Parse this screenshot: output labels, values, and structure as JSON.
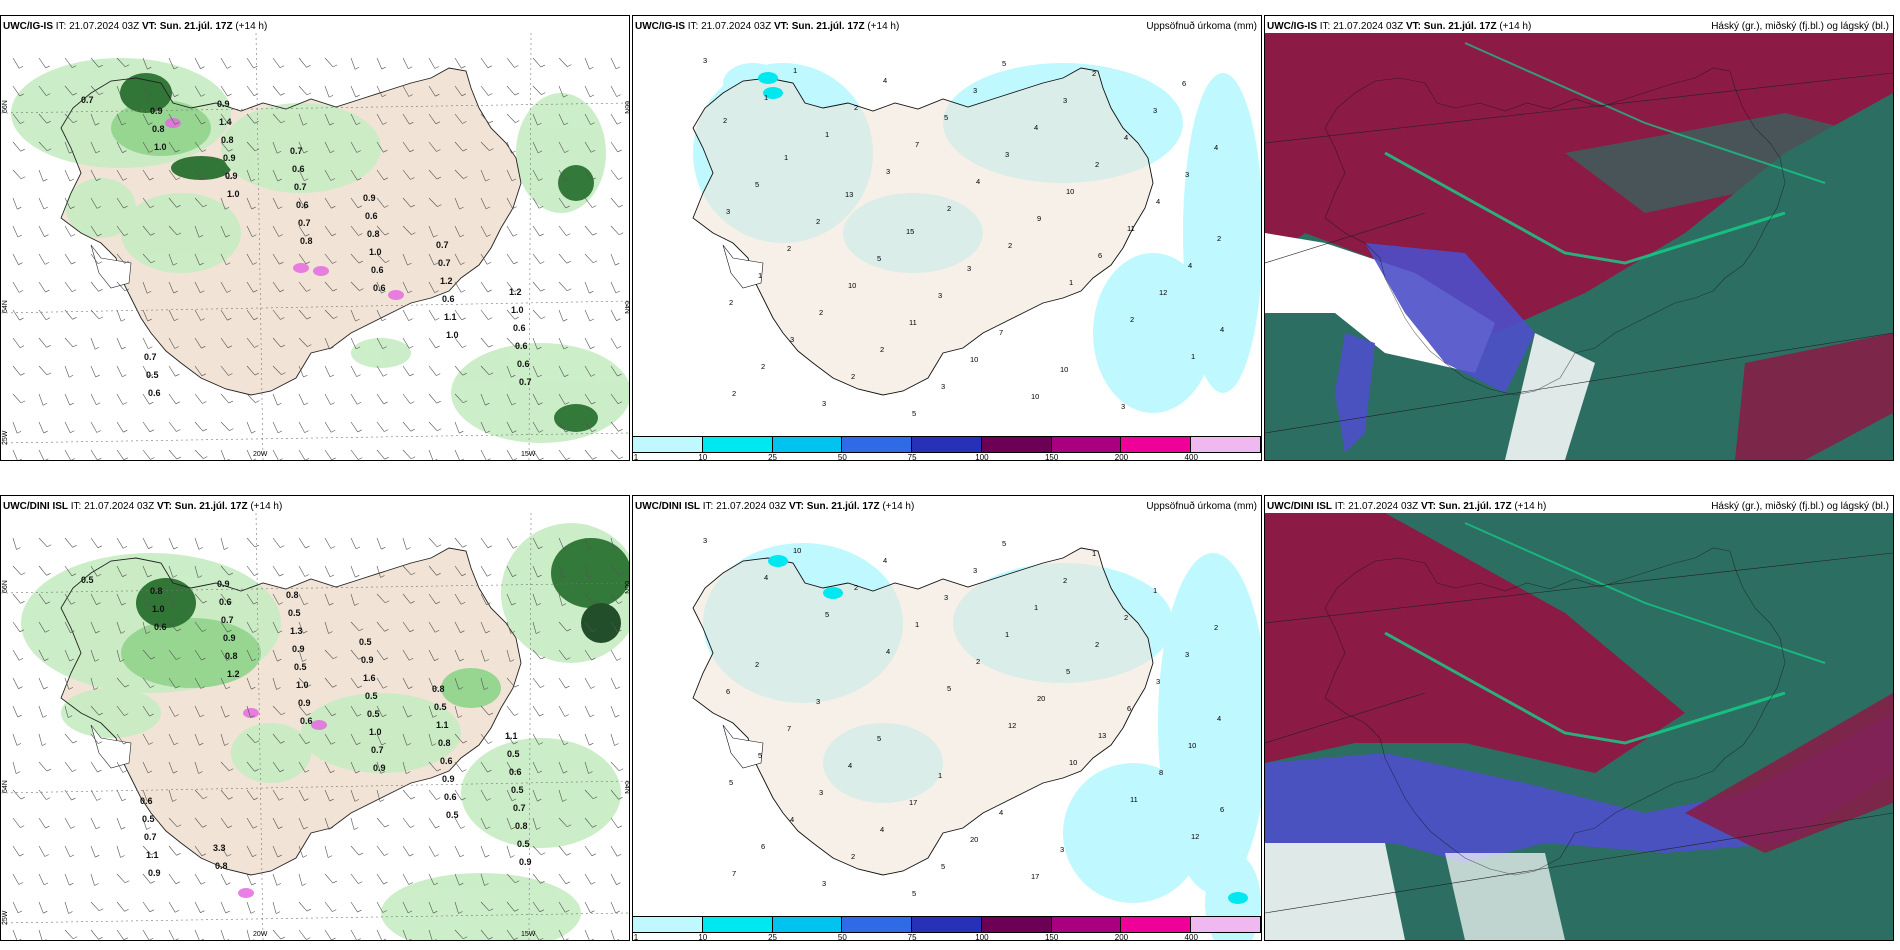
{
  "panels": [
    {
      "id": "ig-wind",
      "model": "UWC/IG-IS",
      "it_label": "IT:",
      "it_value": "21.07.2024 03Z",
      "vt_label": "VT:",
      "vt_value": "Sun. 21.júl. 17Z",
      "lead": "(+14 h)",
      "right_title": ""
    },
    {
      "id": "ig-precip",
      "model": "UWC/IG-IS",
      "it_label": "IT:",
      "it_value": "21.07.2024 03Z",
      "vt_label": "VT:",
      "vt_value": "Sun. 21.júl. 17Z",
      "lead": "(+14 h)",
      "right_title": "Uppsöfnuð úrkoma (mm)"
    },
    {
      "id": "ig-cloud",
      "model": "UWC/IG-IS",
      "it_label": "IT:",
      "it_value": "21.07.2024 03Z",
      "vt_label": "VT:",
      "vt_value": "Sun. 21.júl. 17Z",
      "lead": "(+14 h)",
      "right_title": "Háský (gr.), miðský (fj.bl.) og lágský (bl.)"
    },
    {
      "id": "dini-wind",
      "model": "UWC/DINI ISL",
      "it_label": "IT:",
      "it_value": "21.07.2024 03Z",
      "vt_label": "VT:",
      "vt_value": "Sun. 21.júl. 17Z",
      "lead": "(+14 h)",
      "right_title": ""
    },
    {
      "id": "dini-precip",
      "model": "UWC/DINI ISL",
      "it_label": "IT:",
      "it_value": "21.07.2024 03Z",
      "vt_label": "VT:",
      "vt_value": "Sun. 21.júl. 17Z",
      "lead": "(+14 h)",
      "right_title": "Uppsöfnuð úrkoma (mm)"
    },
    {
      "id": "dini-cloud",
      "model": "UWC/DINI ISL",
      "it_label": "IT:",
      "it_value": "21.07.2024 03Z",
      "vt_label": "VT:",
      "vt_value": "Sun. 21.júl. 17Z",
      "lead": "(+14 h)",
      "right_title": "Háský (gr.), miðský (fj.bl.) og lágský (bl.)"
    }
  ],
  "grid_labels": {
    "lat_66": "66N",
    "lat_64": "64N",
    "lat_65": "65N",
    "lat_25w": "25W",
    "lon_20w": "20W",
    "lon_15w": "15W"
  },
  "colorbar": {
    "labels": [
      "1",
      "10",
      "25",
      "50",
      "75",
      "100",
      "150",
      "200",
      "400"
    ],
    "colors": [
      "#bff8ff",
      "#00e8ef",
      "#00c3ef",
      "#2f6be6",
      "#2630b8",
      "#6b0054",
      "#a8007e",
      "#ef0099",
      "#f0b8f0"
    ]
  },
  "colors": {
    "land": "#f1e3d5",
    "precip_light": "#c6ecc2",
    "precip_mid": "#8ed58a",
    "precip_dark": "#1d6b25",
    "precip_very_dark": "#0b3d14",
    "precip_cyan": "#bff8ff",
    "cloud_teal": "#2d6e62",
    "cloud_maroon": "#8b1a45",
    "cloud_blue": "#4c4fc9",
    "cloud_green": "#13d28a"
  },
  "wind_values": {
    "ig": [
      "0.7",
      "1.0",
      "1.0",
      "0.8",
      "0.6",
      "1.0",
      "0.7",
      "0.8",
      "0.9",
      "0.7",
      "0.6",
      "1.1",
      "0.6",
      "0.9",
      "0.9",
      "0.6",
      "1.0",
      "0.6",
      "0.6",
      "0.6",
      "0.8",
      "0.7",
      "0.8",
      "1.2",
      "0.6",
      "0.5",
      "1.4",
      "0.6",
      "0.6",
      "0.7",
      "1.0",
      "0.7",
      "0.9",
      "0.7",
      "0.9",
      "0.7",
      "1.2"
    ],
    "dini": [
      "0.5",
      "0.6",
      "1.2",
      "0.6",
      "0.9",
      "0.5",
      "0.9",
      "1.0",
      "0.8",
      "0.9",
      "0.7",
      "0.6",
      "0.5",
      "0.8",
      "0.9",
      "1.0",
      "1.0",
      "0.9",
      "0.8",
      "0.9",
      "0.7",
      "0.5",
      "0.5",
      "0.6",
      "0.7",
      "1.1",
      "0.6",
      "0.9",
      "0.5",
      "0.8",
      "0.5",
      "0.7",
      "0.9",
      "1.3",
      "1.6",
      "1.1",
      "0.6",
      "0.5",
      "0.8",
      "0.5",
      "0.9",
      "0.5",
      "0.5",
      "0.6",
      "3.3",
      "0.8",
      "0.5",
      "0.8",
      "1.1"
    ]
  },
  "precip_values": {
    "ig": [
      "3",
      "1",
      "1",
      "3",
      "2",
      "2",
      "1",
      "2",
      "1",
      "2",
      "1",
      "2",
      "7",
      "4",
      "9",
      "6",
      "12",
      "4",
      "2",
      "3",
      "4",
      "5",
      "3",
      "10",
      "11",
      "4",
      "2",
      "3",
      "2",
      "5",
      "3",
      "4",
      "2",
      "4",
      "2",
      "1",
      "2",
      "2",
      "3",
      "5",
      "3",
      "4",
      "3",
      "3",
      "2",
      "10",
      "11",
      "10",
      "10",
      "2",
      "3",
      "4",
      "5",
      "2",
      "5",
      "3",
      "7",
      "10",
      "3",
      "6",
      "2",
      "1",
      "13",
      "15",
      "3"
    ],
    "dini": [
      "3",
      "4",
      "5",
      "4",
      "5",
      "12",
      "10",
      "11",
      "12",
      "7",
      "10",
      "2",
      "1",
      "2",
      "20",
      "13",
      "8",
      "6",
      "6",
      "3",
      "4",
      "3",
      "1",
      "5",
      "6",
      "10",
      "5",
      "4",
      "2",
      "5",
      "3",
      "1",
      "2",
      "3",
      "4",
      "5",
      "3",
      "4",
      "5",
      "5",
      "2",
      "2",
      "3",
      "6",
      "7",
      "4",
      "17",
      "20",
      "17",
      "1",
      "1",
      "2",
      "2",
      "3",
      "5",
      "1",
      "4",
      "3"
    ]
  }
}
